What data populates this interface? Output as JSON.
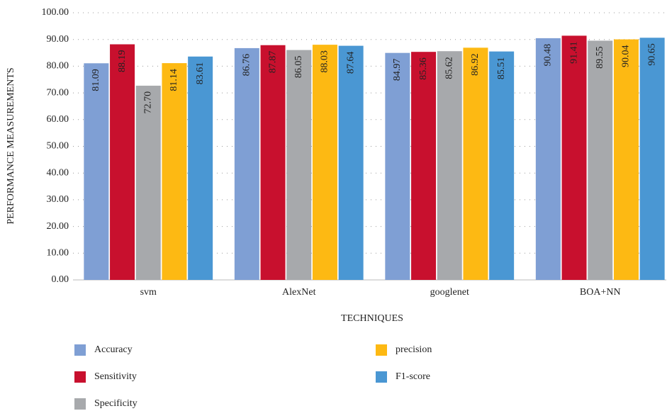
{
  "chart_data": {
    "type": "bar",
    "x_label": "TECHNIQUES",
    "y_label": "PERFORMANCE MEASUREMENTS",
    "categories": [
      "svm",
      "AlexNet",
      "googlenet",
      "BOA+NN"
    ],
    "series": [
      {
        "name": "Accuracy",
        "color": "#7f9fd4",
        "values": [
          81.09,
          86.76,
          84.97,
          90.48
        ],
        "value_labels": [
          "81.09",
          "86.76",
          "84.97",
          "90.48"
        ]
      },
      {
        "name": "Sensitivity",
        "color": "#c8102e",
        "values": [
          88.19,
          87.87,
          85.36,
          91.41
        ],
        "value_labels": [
          "88.19",
          "87.87",
          "85.36",
          "91.41"
        ]
      },
      {
        "name": "Specificity",
        "color": "#a7a9ac",
        "values": [
          72.7,
          86.05,
          85.62,
          89.55
        ],
        "value_labels": [
          "72.70",
          "86.05",
          "85.62",
          "89.55"
        ]
      },
      {
        "name": "precision",
        "color": "#fdb913",
        "values": [
          81.14,
          88.03,
          86.92,
          90.04
        ],
        "value_labels": [
          "81.14",
          "88.03",
          "86.92",
          "90.04"
        ]
      },
      {
        "name": "F1-score",
        "color": "#4a97d3",
        "values": [
          83.61,
          87.64,
          85.51,
          90.65
        ],
        "value_labels": [
          "83.61",
          "87.64",
          "85.51",
          "90.65"
        ]
      }
    ],
    "ylim": [
      0,
      100
    ],
    "yticks": [
      {
        "value": 0,
        "label": "0.00"
      },
      {
        "value": 10,
        "label": "10.00"
      },
      {
        "value": 20,
        "label": "20.00"
      },
      {
        "value": 30,
        "label": "30.00"
      },
      {
        "value": 40,
        "label": "40.00"
      },
      {
        "value": 50,
        "label": "50.00"
      },
      {
        "value": 60,
        "label": "60.00"
      },
      {
        "value": 70,
        "label": "70.00"
      },
      {
        "value": 80,
        "label": "80.00"
      },
      {
        "value": 90,
        "label": "90.00"
      },
      {
        "value": 100,
        "label": "100.00"
      }
    ],
    "grid": true,
    "legend": "bottom"
  }
}
